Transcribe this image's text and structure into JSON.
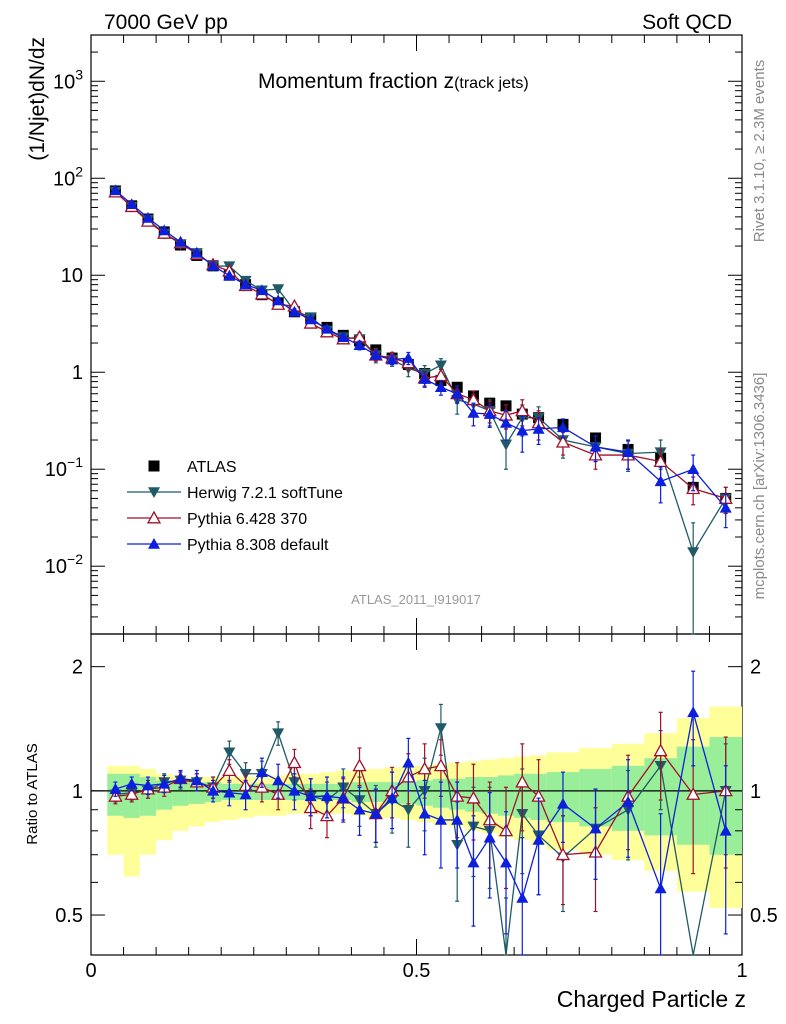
{
  "header": {
    "left": "7000 GeV pp",
    "right": "Soft QCD"
  },
  "side_labels": {
    "rivet": "Rivet 3.1.10, ≥ 2.3M events",
    "mcplots": "mcplots.cern.ch [arXiv:1306.3436]"
  },
  "chart_data": [
    {
      "type": "line",
      "panel": "main",
      "title_main": "Momentum fraction z",
      "title_sub": "(track jets)",
      "analysis_id": "ATLAS_2011_I919017",
      "xlabel": "Charged Particle z",
      "ylabel": "(1/Njet)dN/dz",
      "yscale": "log",
      "xlim": [
        0,
        1
      ],
      "ylim": [
        0.002,
        3000
      ],
      "ytick_values": [
        0.01,
        0.1,
        1,
        10,
        100,
        1000
      ],
      "ytick_labels": [
        {
          "base": "10",
          "exp": "−2"
        },
        {
          "base": "10",
          "exp": "−1"
        },
        {
          "base": "1",
          "exp": ""
        },
        {
          "base": "10",
          "exp": ""
        },
        {
          "base": "10",
          "exp": "2"
        },
        {
          "base": "10",
          "exp": "3"
        }
      ],
      "x": [
        0.0375,
        0.0625,
        0.0875,
        0.1125,
        0.1375,
        0.1625,
        0.1875,
        0.2125,
        0.2375,
        0.2625,
        0.2875,
        0.3125,
        0.3375,
        0.3625,
        0.3875,
        0.4125,
        0.4375,
        0.4625,
        0.4875,
        0.5125,
        0.5375,
        0.5625,
        0.5875,
        0.6125,
        0.6375,
        0.6625,
        0.6875,
        0.725,
        0.775,
        0.825,
        0.875,
        0.925,
        0.975
      ],
      "series": [
        {
          "name": "ATLAS",
          "color": "#000000",
          "marker": "square",
          "values": [
            74,
            52,
            38,
            28,
            20.5,
            16,
            12.5,
            10,
            8,
            6.3,
            5.2,
            4.2,
            3.6,
            2.9,
            2.4,
            2.1,
            1.7,
            1.4,
            1.2,
            0.97,
            0.82,
            0.7,
            0.57,
            0.48,
            0.45,
            0.37,
            0.34,
            0.29,
            0.21,
            0.16,
            0.13,
            0.065,
            0.05
          ],
          "errors": [
            3,
            2,
            1.4,
            1,
            0.7,
            0.6,
            0.5,
            0.4,
            0.3,
            0.25,
            0.2,
            0.15,
            0.12,
            0.1,
            0.09,
            0.08,
            0.07,
            0.06,
            0.05,
            0.05,
            0.04,
            0.04,
            0.03,
            0.03,
            0.03,
            0.03,
            0.02,
            0.02,
            0.015,
            0.012,
            0.012,
            0.008,
            0.006
          ]
        },
        {
          "name": "Herwig 7.2.1 softTune",
          "color": "#1f5a66",
          "marker": "triangle-down",
          "values": [
            73,
            51,
            37.5,
            27,
            21,
            17,
            12.5,
            12.4,
            8.8,
            7,
            7.2,
            4.3,
            3.7,
            2.7,
            2.3,
            2.2,
            1.5,
            1.35,
            1.1,
            0.97,
            1.18,
            0.52,
            0.47,
            0.4,
            0.18,
            0.34,
            0.34,
            0.2,
            0.17,
            0.145,
            0.15,
            0.014,
            0.05
          ],
          "errors": [
            3,
            2,
            1.5,
            1.2,
            0.9,
            0.8,
            0.6,
            0.8,
            0.6,
            0.5,
            0.5,
            0.4,
            0.35,
            0.3,
            0.25,
            0.3,
            0.25,
            0.2,
            0.2,
            0.2,
            0.2,
            0.15,
            0.12,
            0.12,
            0.08,
            0.12,
            0.1,
            0.07,
            0.05,
            0.05,
            0.05,
            0.014,
            0.015
          ]
        },
        {
          "name": "Pythia 6.428 370",
          "color": "#a0102a",
          "marker": "triangle-open",
          "values": [
            72,
            51,
            36,
            27,
            21.5,
            16.5,
            12.8,
            11,
            7.8,
            6.4,
            5,
            4.8,
            3.2,
            2.6,
            2.2,
            2.3,
            1.5,
            1.4,
            1.25,
            0.87,
            0.92,
            0.6,
            0.52,
            0.4,
            0.36,
            0.4,
            0.3,
            0.19,
            0.14,
            0.14,
            0.12,
            0.063,
            0.05
          ],
          "errors": [
            3,
            2,
            1.4,
            1.1,
            0.9,
            0.7,
            0.6,
            0.6,
            0.5,
            0.4,
            0.4,
            0.4,
            0.3,
            0.25,
            0.2,
            0.25,
            0.2,
            0.2,
            0.2,
            0.15,
            0.15,
            0.12,
            0.12,
            0.1,
            0.1,
            0.12,
            0.1,
            0.05,
            0.04,
            0.04,
            0.04,
            0.02,
            0.015
          ]
        },
        {
          "name": "Pythia 8.308 default",
          "color": "#0b1fdd",
          "marker": "triangle",
          "values": [
            75,
            54,
            39,
            29,
            22,
            17,
            12.5,
            9.9,
            8,
            7,
            5.5,
            4.2,
            3.5,
            2.8,
            2.3,
            1.9,
            1.5,
            1.35,
            1.4,
            0.85,
            0.7,
            0.6,
            0.38,
            0.37,
            0.3,
            0.25,
            0.26,
            0.27,
            0.17,
            0.15,
            0.075,
            0.1,
            0.04
          ],
          "errors": [
            3,
            2,
            1.5,
            1.2,
            0.9,
            0.7,
            0.6,
            0.5,
            0.4,
            0.35,
            0.3,
            0.3,
            0.25,
            0.2,
            0.2,
            0.2,
            0.15,
            0.15,
            0.2,
            0.15,
            0.12,
            0.12,
            0.1,
            0.1,
            0.1,
            0.1,
            0.08,
            0.06,
            0.05,
            0.05,
            0.03,
            0.04,
            0.015
          ]
        }
      ]
    },
    {
      "type": "line",
      "panel": "ratio",
      "ylabel": "Ratio to ATLAS",
      "yscale": "log",
      "ylim": [
        0.4,
        2.4
      ],
      "ytick_values": [
        0.5,
        1,
        2
      ],
      "ytick_labels": [
        "0.5",
        "1",
        "2"
      ],
      "xtick_values": [
        0,
        0.5,
        1
      ],
      "xtick_labels": [
        "0",
        "0.5",
        "1"
      ],
      "reference_line": 1,
      "band_edges": [
        0.025,
        0.05,
        0.075,
        0.1,
        0.125,
        0.15,
        0.175,
        0.2,
        0.225,
        0.25,
        0.275,
        0.3,
        0.325,
        0.35,
        0.375,
        0.4,
        0.425,
        0.45,
        0.475,
        0.5,
        0.525,
        0.55,
        0.575,
        0.6,
        0.625,
        0.65,
        0.675,
        0.7,
        0.75,
        0.8,
        0.85,
        0.9,
        0.95,
        1.0
      ],
      "band_stat_low": [
        0.87,
        0.86,
        0.87,
        0.9,
        0.92,
        0.93,
        0.94,
        0.95,
        0.95,
        0.95,
        0.95,
        0.95,
        0.95,
        0.95,
        0.95,
        0.94,
        0.94,
        0.93,
        0.93,
        0.92,
        0.91,
        0.9,
        0.89,
        0.88,
        0.87,
        0.86,
        0.85,
        0.84,
        0.82,
        0.8,
        0.78,
        0.74,
        0.7
      ],
      "band_stat_high": [
        1.1,
        1.1,
        1.08,
        1.06,
        1.05,
        1.05,
        1.05,
        1.04,
        1.04,
        1.04,
        1.04,
        1.04,
        1.04,
        1.04,
        1.04,
        1.05,
        1.05,
        1.05,
        1.05,
        1.06,
        1.07,
        1.07,
        1.08,
        1.08,
        1.09,
        1.1,
        1.1,
        1.11,
        1.13,
        1.15,
        1.2,
        1.28,
        1.35
      ],
      "band_total_low": [
        0.7,
        0.62,
        0.7,
        0.76,
        0.8,
        0.82,
        0.84,
        0.85,
        0.86,
        0.87,
        0.87,
        0.88,
        0.88,
        0.88,
        0.88,
        0.87,
        0.86,
        0.86,
        0.85,
        0.84,
        0.83,
        0.82,
        0.8,
        0.79,
        0.77,
        0.76,
        0.74,
        0.72,
        0.7,
        0.68,
        0.64,
        0.57,
        0.52
      ],
      "band_total_high": [
        1.15,
        1.15,
        1.13,
        1.1,
        1.08,
        1.08,
        1.08,
        1.08,
        1.08,
        1.08,
        1.09,
        1.1,
        1.1,
        1.11,
        1.12,
        1.12,
        1.13,
        1.14,
        1.15,
        1.15,
        1.16,
        1.17,
        1.18,
        1.19,
        1.2,
        1.21,
        1.22,
        1.24,
        1.27,
        1.3,
        1.38,
        1.5,
        1.6
      ],
      "series": [
        {
          "name": "Herwig 7.2.1 softTune",
          "color": "#1f5a66",
          "marker": "triangle-down",
          "values": [
            0.98,
            0.99,
            1.0,
            1.05,
            1.06,
            1.05,
            1.02,
            1.24,
            1.1,
            1.1,
            1.38,
            1.05,
            0.97,
            0.95,
            1.02,
            0.95,
            0.88,
            0.95,
            0.9,
            1.0,
            1.42,
            0.74,
            0.82,
            0.8,
            0.35,
            0.88,
            0.78,
            0.69,
            0.81,
            0.9,
            1.15,
            0.2,
            1.0
          ],
          "errors": [
            0.04,
            0.04,
            0.04,
            0.05,
            0.05,
            0.05,
            0.06,
            0.08,
            0.07,
            0.08,
            0.09,
            0.1,
            0.1,
            0.1,
            0.11,
            0.13,
            0.15,
            0.16,
            0.17,
            0.2,
            0.2,
            0.2,
            0.2,
            0.22,
            0.2,
            0.25,
            0.22,
            0.18,
            0.2,
            0.22,
            0.25,
            0.2,
            0.3
          ]
        },
        {
          "name": "Pythia 6.428 370",
          "color": "#a0102a",
          "marker": "triangle-open",
          "values": [
            0.97,
            0.98,
            1.01,
            1.02,
            1.07,
            1.05,
            1.02,
            1.12,
            1.03,
            1.02,
            0.98,
            1.17,
            0.91,
            0.87,
            0.96,
            1.15,
            0.88,
            1.0,
            1.08,
            1.13,
            1.15,
            0.97,
            0.96,
            0.85,
            0.8,
            1.05,
            0.97,
            0.7,
            0.71,
            0.97,
            1.25,
            0.98,
            1.0
          ],
          "errors": [
            0.04,
            0.04,
            0.05,
            0.05,
            0.05,
            0.05,
            0.06,
            0.07,
            0.07,
            0.08,
            0.08,
            0.09,
            0.1,
            0.1,
            0.11,
            0.12,
            0.13,
            0.14,
            0.15,
            0.17,
            0.18,
            0.2,
            0.2,
            0.2,
            0.22,
            0.25,
            0.22,
            0.17,
            0.2,
            0.25,
            0.3,
            0.35,
            0.35
          ]
        },
        {
          "name": "Pythia 8.308 default",
          "color": "#0b1fdd",
          "marker": "triangle",
          "values": [
            1.01,
            1.04,
            1.03,
            1.04,
            1.07,
            1.06,
            1.0,
            0.99,
            0.98,
            1.11,
            1.06,
            1.0,
            0.97,
            0.97,
            0.96,
            0.9,
            0.88,
            0.96,
            1.17,
            0.88,
            0.85,
            0.85,
            0.67,
            0.77,
            0.67,
            0.55,
            0.76,
            0.93,
            0.81,
            0.94,
            0.58,
            1.55,
            0.8
          ],
          "errors": [
            0.04,
            0.04,
            0.05,
            0.05,
            0.05,
            0.06,
            0.06,
            0.07,
            0.08,
            0.09,
            0.1,
            0.1,
            0.1,
            0.11,
            0.12,
            0.12,
            0.13,
            0.15,
            0.17,
            0.18,
            0.2,
            0.2,
            0.2,
            0.22,
            0.22,
            0.22,
            0.2,
            0.18,
            0.2,
            0.25,
            0.3,
            0.4,
            0.35
          ]
        }
      ]
    }
  ]
}
